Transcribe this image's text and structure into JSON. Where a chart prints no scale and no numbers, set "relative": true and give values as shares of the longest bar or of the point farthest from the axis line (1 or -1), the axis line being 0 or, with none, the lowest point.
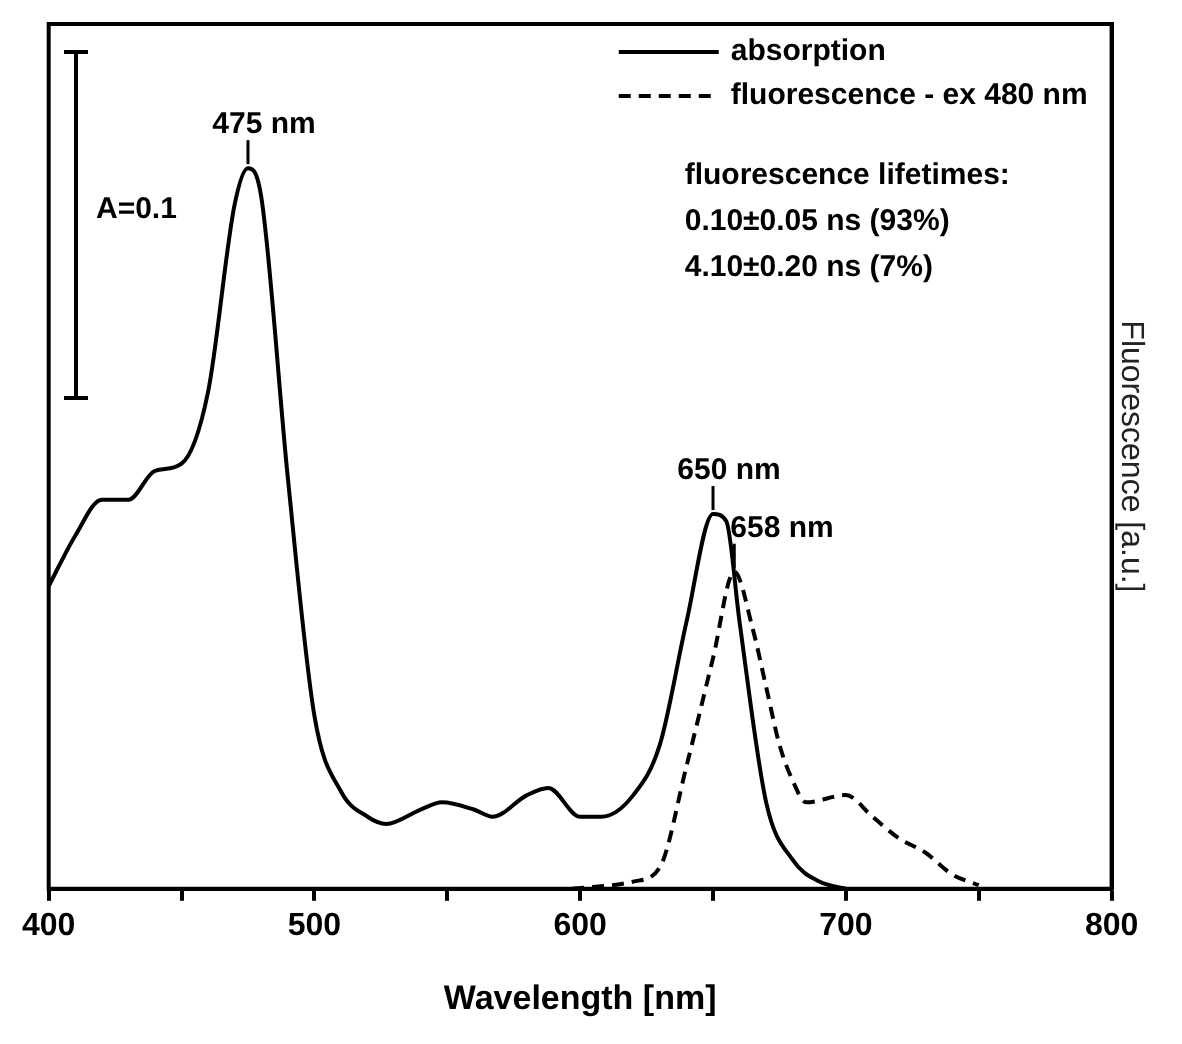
{
  "chart_data": {
    "type": "line",
    "relative": true,
    "xlabel": "Wavelength [nm]",
    "ylabel": "Fluorescence [a.u.]",
    "xlim": [
      400,
      800
    ],
    "xticks": [
      400,
      {
        "value": 450,
        "label": null
      },
      500,
      {
        "value": 550,
        "label": null
      },
      600,
      {
        "value": 650,
        "label": null
      },
      700,
      {
        "value": 750,
        "label": null
      },
      800
    ],
    "grid": false,
    "legend": "top right",
    "marker": "none",
    "series": [
      {
        "name": "absorption",
        "color": "#000000",
        "line_style": "solid",
        "x": [
          400,
          410,
          420,
          430,
          440,
          450,
          460,
          470,
          475,
          480,
          490,
          500,
          510,
          520,
          527,
          540,
          548,
          560,
          567,
          580,
          588,
          600,
          608,
          620,
          630,
          640,
          650,
          655,
          660,
          670,
          680,
          690,
          700
        ],
        "values": [
          0.42,
          0.49,
          0.54,
          0.54,
          0.58,
          0.59,
          0.69,
          0.95,
          1,
          0.96,
          0.57,
          0.24,
          0.135,
          0.1,
          0.09,
          0.11,
          0.12,
          0.11,
          0.1,
          0.13,
          0.14,
          0.1,
          0.1,
          0.13,
          0.2,
          0.37,
          0.52,
          0.51,
          0.37,
          0.12,
          0.04,
          0.01,
          0
        ]
      },
      {
        "name": "fluorescence - ex 480 nm",
        "color": "#000000",
        "line_style": "dashed",
        "x": [
          597,
          620,
          630,
          640,
          650,
          658,
          665,
          670,
          675,
          680,
          685,
          700,
          710,
          720,
          730,
          740,
          750
        ],
        "values": [
          0,
          0.01,
          0.03,
          0.17,
          0.32,
          0.44,
          0.36,
          0.28,
          0.2,
          0.15,
          0.12,
          0.13,
          0.1,
          0.07,
          0.05,
          0.02,
          0.005
        ]
      }
    ],
    "annotations": [
      {
        "text": "475 nm",
        "x": 475,
        "y": 1
      },
      {
        "text": "650 nm",
        "x": 650,
        "y": 0.52
      },
      {
        "text": "658 nm",
        "x": 658,
        "y": 0.44
      },
      "A=0.1",
      "fluorescence lifetimes:",
      "0.10±0.05 ns (93%)",
      "4.10±0.20 ns (7%)"
    ]
  }
}
